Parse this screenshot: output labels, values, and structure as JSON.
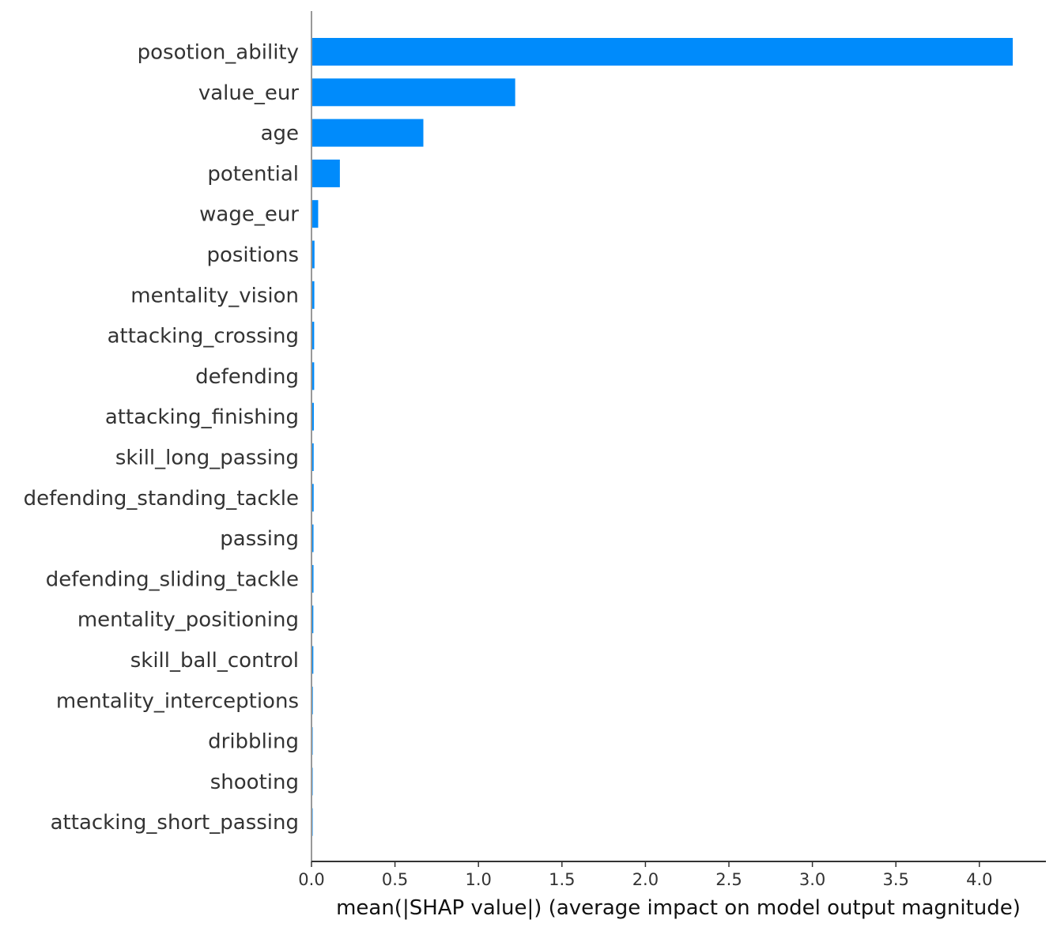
{
  "chart_data": {
    "type": "bar",
    "orientation": "horizontal",
    "categories": [
      "posotion_ability",
      "value_eur",
      "age",
      "potential",
      "wage_eur",
      "positions",
      "mentality_vision",
      "attacking_crossing",
      "defending",
      "attacking_finishing",
      "skill_long_passing",
      "defending_standing_tackle",
      "passing",
      "defending_sliding_tackle",
      "mentality_positioning",
      "skill_ball_control",
      "mentality_interceptions",
      "dribbling",
      "shooting",
      "attacking_short_passing"
    ],
    "values": [
      4.2,
      1.22,
      0.67,
      0.17,
      0.04,
      0.018,
      0.017,
      0.016,
      0.016,
      0.014,
      0.013,
      0.013,
      0.012,
      0.012,
      0.011,
      0.011,
      0.008,
      0.007,
      0.007,
      0.006
    ],
    "bar_color": "#008bfb",
    "xlabel": "mean(|SHAP value|) (average impact on model output magnitude)",
    "xlim": [
      0,
      4.4
    ],
    "xticks": [
      "0.0",
      "0.5",
      "1.0",
      "1.5",
      "2.0",
      "2.5",
      "3.0",
      "3.5",
      "4.0"
    ],
    "grid": false,
    "legend": false
  }
}
